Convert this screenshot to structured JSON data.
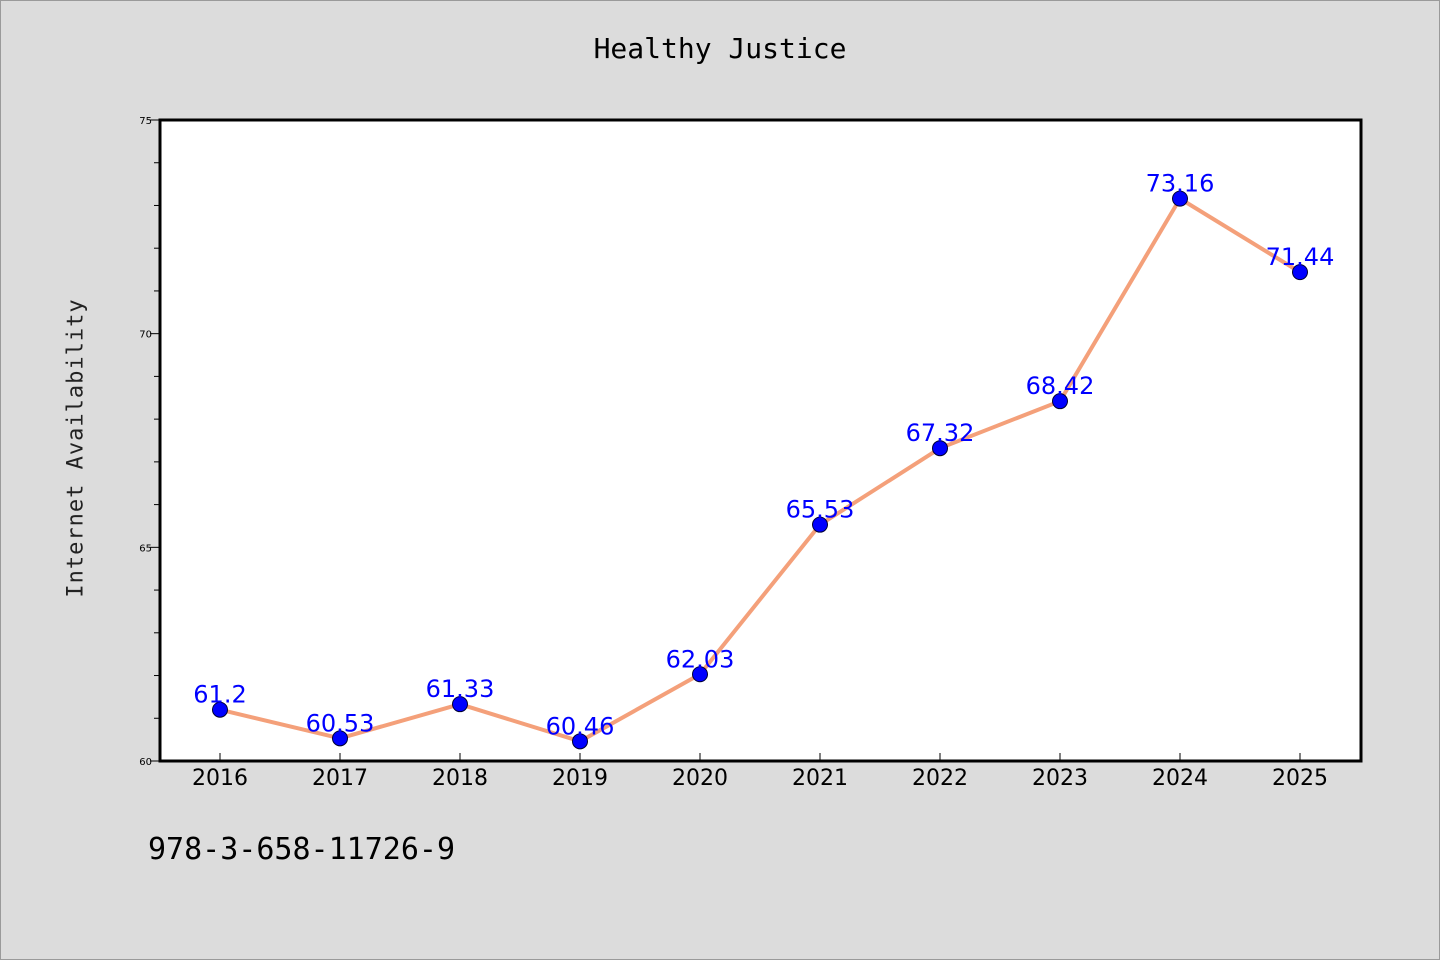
{
  "title": "Healthy Justice",
  "ylabel": "Internet Availability",
  "footer_text": "978-3-658-11726-9",
  "chart_data": {
    "type": "line",
    "title": "Healthy Justice",
    "xlabel": "",
    "ylabel": "Internet Availability",
    "categories": [
      "2016",
      "2017",
      "2018",
      "2019",
      "2020",
      "2021",
      "2022",
      "2023",
      "2024",
      "2025"
    ],
    "values": [
      61.2,
      60.53,
      61.33,
      60.46,
      62.03,
      65.53,
      67.32,
      68.42,
      73.16,
      71.44
    ],
    "data_labels": [
      "61.2",
      "60.53",
      "61.33",
      "60.46",
      "62.03",
      "65.53",
      "67.32",
      "68.42",
      "73.16",
      "71.44"
    ],
    "ylim": [
      60,
      75
    ],
    "yticks": [
      60,
      65,
      70,
      75
    ],
    "grid": false,
    "line_color": "#f4a07a",
    "marker_color": "#0000ff",
    "label_color": "#0000ff"
  }
}
